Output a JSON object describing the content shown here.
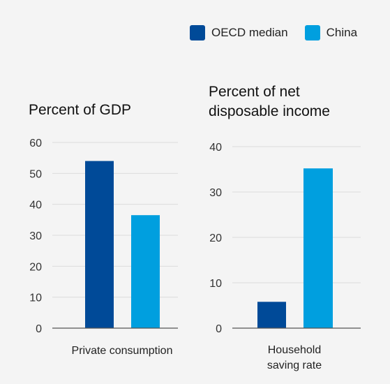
{
  "legend": [
    {
      "name": "OECD median",
      "color": "#004a98"
    },
    {
      "name": "China",
      "color": "#009fdf"
    }
  ],
  "chart_data": [
    {
      "type": "bar",
      "title": "Percent of GDP",
      "categories": [
        "Private consumption"
      ],
      "series": [
        {
          "name": "OECD median",
          "values": [
            54
          ]
        },
        {
          "name": "China",
          "values": [
            36.5
          ]
        }
      ],
      "yticks": [
        0,
        10,
        20,
        30,
        40,
        50,
        60
      ],
      "ylim": [
        0,
        60
      ],
      "grid": true
    },
    {
      "type": "bar",
      "title": "Percent of net disposable income",
      "categories": [
        "Household saving rate"
      ],
      "series": [
        {
          "name": "OECD median",
          "values": [
            5.8
          ]
        },
        {
          "name": "China",
          "values": [
            35.2
          ]
        }
      ],
      "yticks": [
        0,
        10,
        20,
        30,
        40
      ],
      "ylim": [
        0,
        40
      ],
      "grid": true
    }
  ]
}
